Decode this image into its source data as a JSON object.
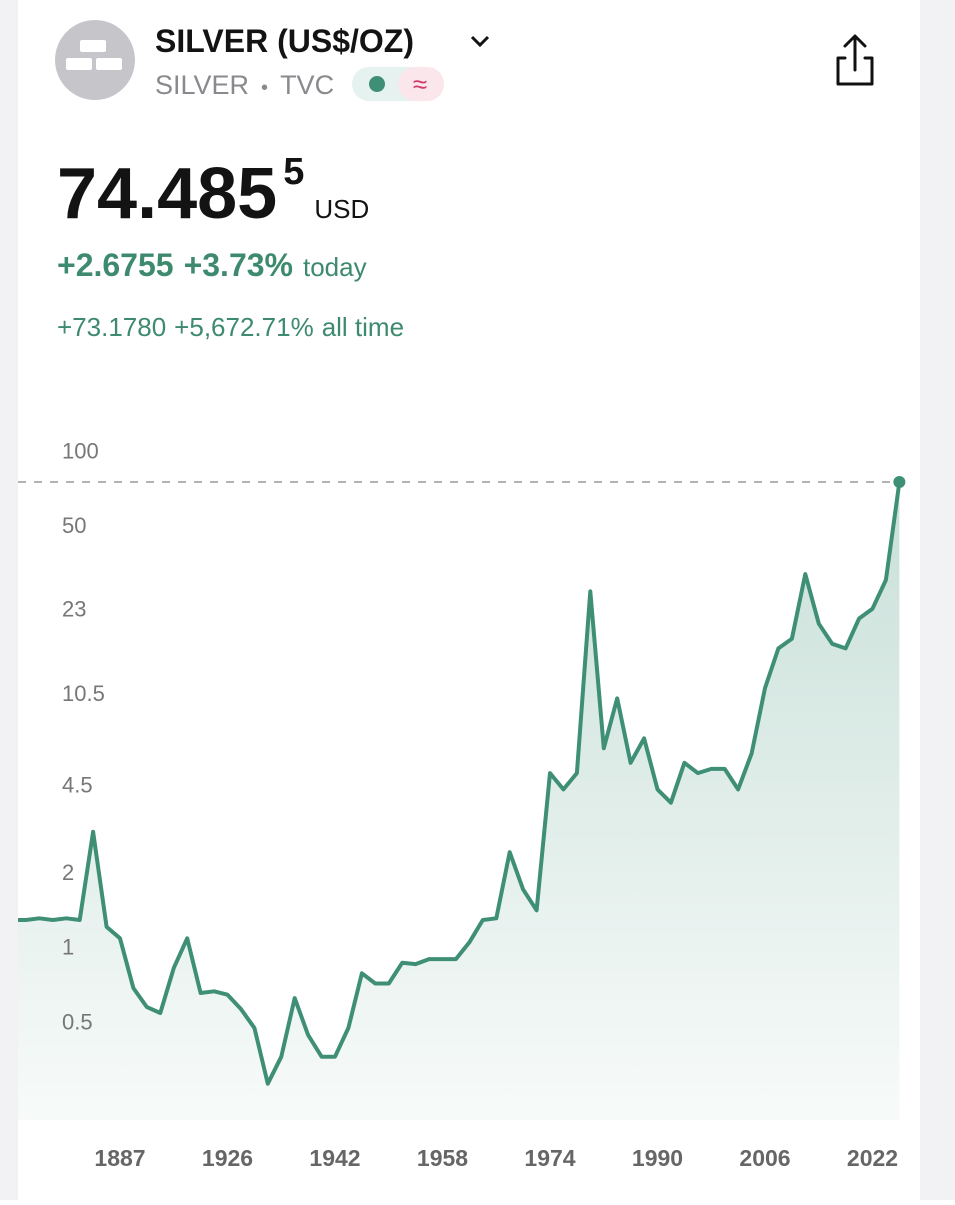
{
  "header": {
    "title": "SILVER (US$/OZ)",
    "symbol": "SILVER",
    "separator": "•",
    "exchange": "TVC"
  },
  "quote": {
    "price": "74.485",
    "price_fraction": "5",
    "currency": "USD",
    "change_today": "+2.6755",
    "change_today_pct": "+3.73%",
    "today_label": "today",
    "change_all": "+73.1780",
    "change_all_pct": "+5,672.71%",
    "all_label": "all time"
  },
  "chart_data": {
    "type": "line",
    "log_scale": true,
    "color": "#3e8f76",
    "fill": true,
    "categories": [
      null,
      null,
      null,
      null,
      null,
      null,
      null,
      null,
      "1887",
      null,
      null,
      null,
      null,
      null,
      null,
      null,
      "1926",
      null,
      null,
      null,
      null,
      null,
      null,
      null,
      "1942",
      null,
      null,
      null,
      null,
      null,
      null,
      null,
      "1958",
      null,
      null,
      null,
      null,
      null,
      null,
      null,
      "1974",
      null,
      null,
      null,
      null,
      null,
      null,
      null,
      "1990",
      null,
      null,
      null,
      null,
      null,
      null,
      null,
      "2006",
      null,
      null,
      null,
      null,
      null,
      null,
      null,
      "2022",
      null,
      null
    ],
    "values": [
      1.28,
      1.28,
      1.3,
      1.28,
      1.3,
      1.28,
      2.9,
      1.2,
      1.08,
      0.68,
      0.57,
      0.54,
      0.82,
      1.08,
      0.65,
      0.66,
      0.64,
      0.56,
      0.47,
      0.28,
      0.36,
      0.62,
      0.44,
      0.36,
      0.36,
      0.47,
      0.78,
      0.71,
      0.71,
      0.86,
      0.85,
      0.89,
      0.89,
      0.89,
      1.04,
      1.28,
      1.3,
      2.4,
      1.7,
      1.4,
      5.0,
      4.3,
      5.0,
      27,
      6.3,
      10,
      5.5,
      6.9,
      4.3,
      3.8,
      5.5,
      5.0,
      5.2,
      5.2,
      4.3,
      6.0,
      11,
      15.9,
      17.4,
      31.7,
      20,
      16.6,
      15.9,
      21,
      23,
      30,
      74.4855
    ],
    "ylim": [
      0.2,
      110
    ],
    "yticks": [
      100,
      50,
      23,
      10.5,
      4.5,
      2,
      1,
      0.5
    ]
  }
}
